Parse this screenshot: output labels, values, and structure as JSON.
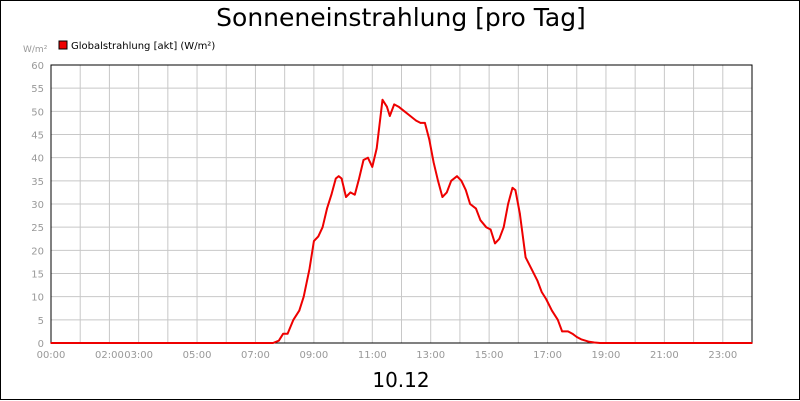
{
  "chart_data": {
    "type": "line",
    "title": "Sonneneinstrahlung [pro Tag]",
    "xlabel": "10.12",
    "ylabel": "W/m²",
    "x_unit": "hour of day",
    "xlim": [
      0,
      24
    ],
    "ylim": [
      0,
      60
    ],
    "yticks": [
      0,
      5,
      10,
      15,
      20,
      25,
      30,
      35,
      40,
      45,
      50,
      55,
      60
    ],
    "xticks": [
      {
        "x": 0,
        "label": "00:00"
      },
      {
        "x": 2,
        "label": "02:00"
      },
      {
        "x": 3,
        "label": "03:00"
      },
      {
        "x": 5,
        "label": "05:00"
      },
      {
        "x": 7,
        "label": "07:00"
      },
      {
        "x": 9,
        "label": "09:00"
      },
      {
        "x": 11,
        "label": "11:00"
      },
      {
        "x": 13,
        "label": "13:00"
      },
      {
        "x": 15,
        "label": "15:00"
      },
      {
        "x": 17,
        "label": "17:00"
      },
      {
        "x": 19,
        "label": "19:00"
      },
      {
        "x": 21,
        "label": "21:00"
      },
      {
        "x": 23,
        "label": "23:00"
      }
    ],
    "grid": true,
    "legend_position": "top-left",
    "series": [
      {
        "name": "Globalstrahlung [akt] (W/m²)",
        "color": "#ee0000",
        "points": [
          [
            0,
            0
          ],
          [
            7.6,
            0
          ],
          [
            7.8,
            0.5
          ],
          [
            7.95,
            2
          ],
          [
            8.1,
            2
          ],
          [
            8.3,
            5
          ],
          [
            8.5,
            7
          ],
          [
            8.65,
            10
          ],
          [
            8.85,
            16
          ],
          [
            9.0,
            22
          ],
          [
            9.15,
            23
          ],
          [
            9.3,
            25
          ],
          [
            9.45,
            29
          ],
          [
            9.6,
            32
          ],
          [
            9.75,
            35.5
          ],
          [
            9.85,
            36
          ],
          [
            9.95,
            35.5
          ],
          [
            10.1,
            31.5
          ],
          [
            10.25,
            32.5
          ],
          [
            10.4,
            32
          ],
          [
            10.55,
            35.5
          ],
          [
            10.7,
            39.5
          ],
          [
            10.85,
            40
          ],
          [
            11.0,
            38
          ],
          [
            11.15,
            42
          ],
          [
            11.35,
            52.5
          ],
          [
            11.5,
            51
          ],
          [
            11.6,
            49
          ],
          [
            11.75,
            51.5
          ],
          [
            11.9,
            51
          ],
          [
            12.1,
            50
          ],
          [
            12.3,
            49
          ],
          [
            12.5,
            48
          ],
          [
            12.65,
            47.5
          ],
          [
            12.8,
            47.5
          ],
          [
            12.95,
            44
          ],
          [
            13.1,
            39
          ],
          [
            13.25,
            35
          ],
          [
            13.4,
            31.5
          ],
          [
            13.55,
            32.5
          ],
          [
            13.7,
            35
          ],
          [
            13.9,
            36
          ],
          [
            14.05,
            35
          ],
          [
            14.2,
            33
          ],
          [
            14.35,
            30
          ],
          [
            14.55,
            29
          ],
          [
            14.7,
            26.5
          ],
          [
            14.9,
            25
          ],
          [
            15.05,
            24.5
          ],
          [
            15.2,
            21.5
          ],
          [
            15.35,
            22.5
          ],
          [
            15.5,
            25
          ],
          [
            15.65,
            30
          ],
          [
            15.8,
            33.5
          ],
          [
            15.9,
            33
          ],
          [
            16.05,
            28
          ],
          [
            16.25,
            18.5
          ],
          [
            16.45,
            16
          ],
          [
            16.65,
            13.5
          ],
          [
            16.8,
            11
          ],
          [
            16.95,
            9.5
          ],
          [
            17.15,
            7
          ],
          [
            17.35,
            5
          ],
          [
            17.5,
            2.5
          ],
          [
            17.7,
            2.5
          ],
          [
            17.85,
            2
          ],
          [
            18.0,
            1.3
          ],
          [
            18.15,
            0.8
          ],
          [
            18.4,
            0.3
          ],
          [
            18.6,
            0.1
          ],
          [
            18.8,
            0
          ],
          [
            24,
            0
          ]
        ]
      }
    ]
  }
}
